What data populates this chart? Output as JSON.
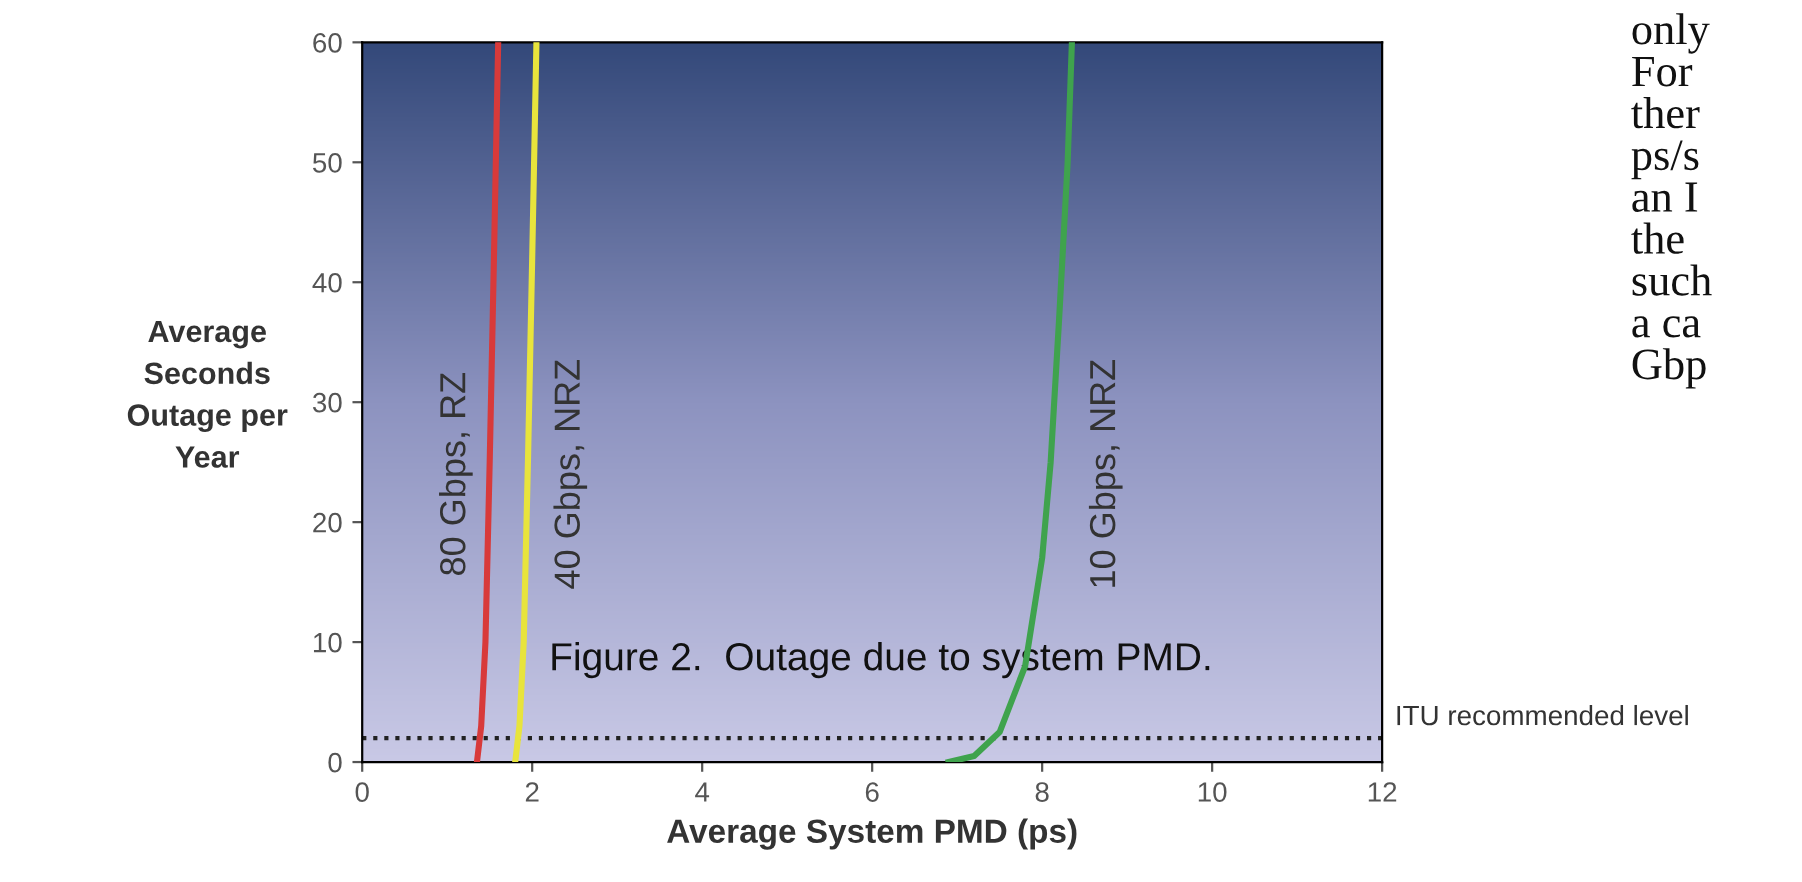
{
  "chart_data": {
    "type": "line",
    "xlabel": "Average System PMD (ps)",
    "ylabel": "Average\nSeconds\nOutage per\nYear",
    "xlim": [
      0,
      12
    ],
    "xticks": [
      0,
      2,
      4,
      6,
      8,
      10,
      12
    ],
    "ylim": [
      0,
      60
    ],
    "yticks": [
      0,
      10,
      20,
      30,
      40,
      50,
      60
    ],
    "grid": false,
    "legend": false,
    "marker": "none",
    "line_style": "solid",
    "series": [
      {
        "name": "80 Gbps, RZ",
        "color": "#d83a3a",
        "x": [
          1.35,
          1.4,
          1.45,
          1.5,
          1.55,
          1.6
        ],
        "values": [
          0,
          3,
          10,
          25,
          42,
          60
        ]
      },
      {
        "name": "40 Gbps, NRZ",
        "color": "#e8e43c",
        "x": [
          1.8,
          1.85,
          1.9,
          1.95,
          2.0,
          2.05
        ],
        "values": [
          0,
          3,
          10,
          25,
          42,
          60
        ]
      },
      {
        "name": "10 Gbps, NRZ",
        "color": "#3fa34d",
        "x": [
          6.9,
          7.2,
          7.5,
          7.8,
          8.0,
          8.1,
          8.2,
          8.3,
          8.35
        ],
        "values": [
          0,
          0.5,
          2.5,
          8,
          17,
          25,
          37,
          50,
          60
        ]
      }
    ],
    "ref_lines": [
      {
        "axis": "y",
        "value": 2,
        "label": "ITU recommended level",
        "color": "#222222",
        "line_style": "dotted"
      }
    ],
    "annotations": [
      "Figure 2.  Outage due to system PMD.",
      "only\nFor\nther\nps/s\nan I\nthe\nsuch\na ca\nGbp"
    ]
  }
}
